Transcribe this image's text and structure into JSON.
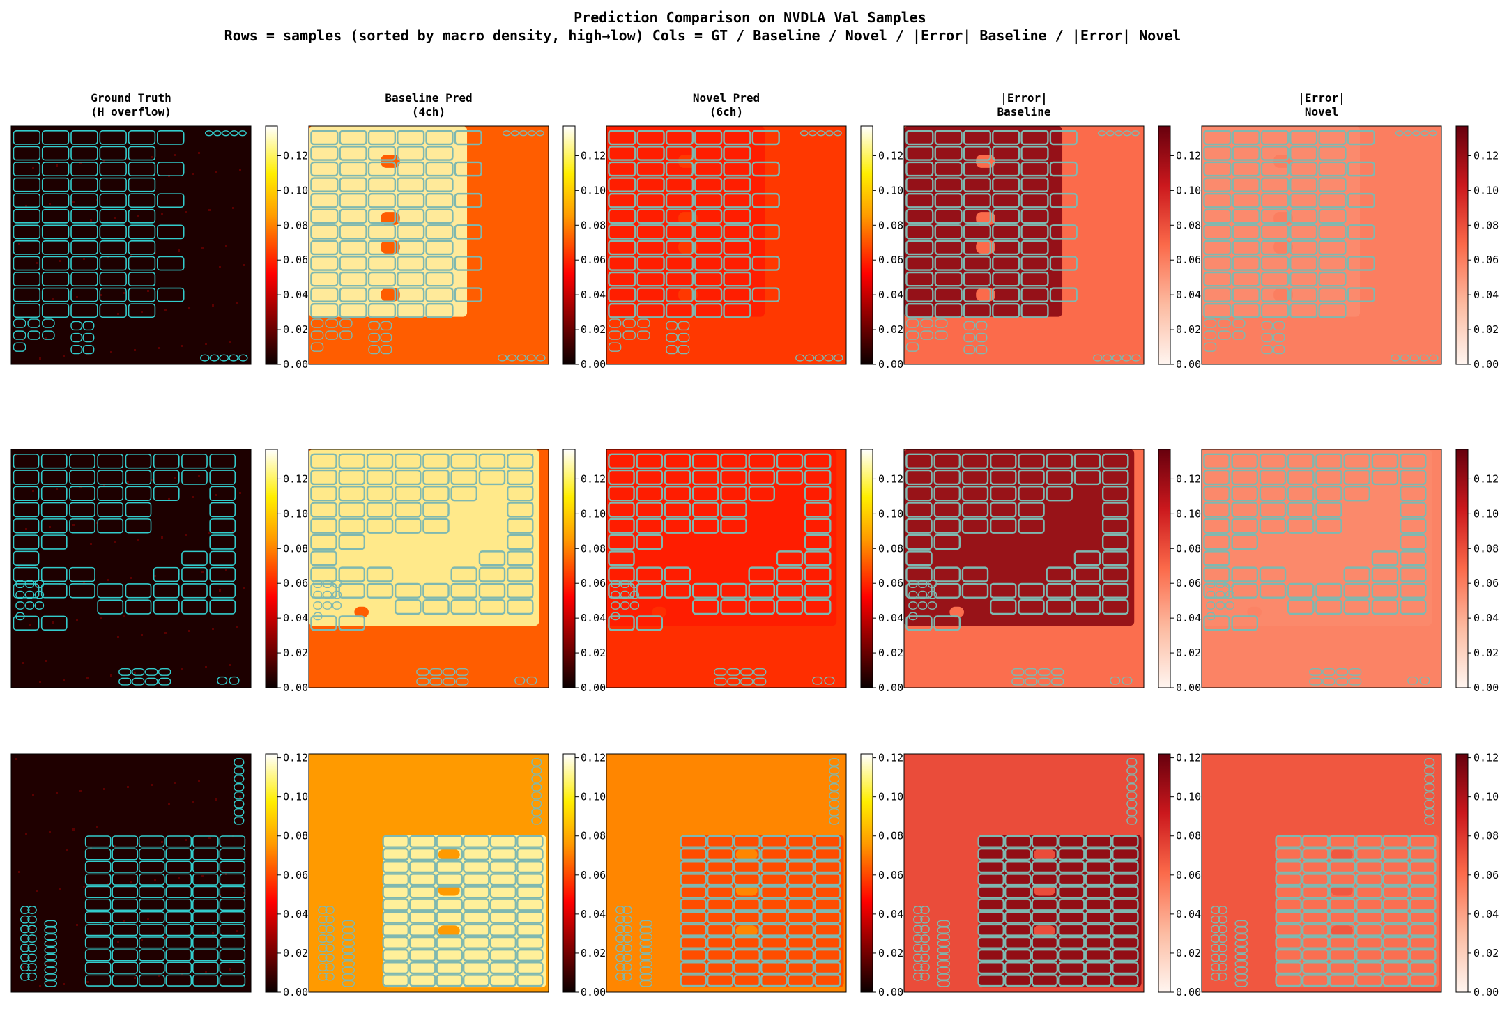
{
  "figure": {
    "title_line1": "Prediction Comparison on NVDLA Val Samples",
    "title_line2": "Rows = samples (sorted by macro density, high→low)  Cols = GT / Baseline / Novel / |Error| Baseline / |Error| Novel"
  },
  "colors": {
    "outline": "#33cccc",
    "outline_muted": "#7fb8b0"
  },
  "chart_data": {
    "type": "heatmap",
    "columns": [
      {
        "key": "gt",
        "title": [
          "Ground Truth",
          "(H overflow)"
        ],
        "colormap": "hot"
      },
      {
        "key": "baseline",
        "title": [
          "Baseline Pred",
          "(4ch)"
        ],
        "colormap": "hot"
      },
      {
        "key": "novel",
        "title": [
          "Novel Pred",
          "(6ch)"
        ],
        "colormap": "hot"
      },
      {
        "key": "err_baseline",
        "title": [
          "|Error|",
          "Baseline"
        ],
        "colormap": "reds"
      },
      {
        "key": "err_novel",
        "title": [
          "|Error|",
          "Novel"
        ],
        "colormap": "reds"
      }
    ],
    "rows": [
      {
        "sample": 1,
        "colorbar_range": [
          0,
          0.137
        ],
        "colorbar_ticks": [
          "0.00",
          "0.02",
          "0.04",
          "0.06",
          "0.08",
          "0.10",
          "0.12"
        ],
        "tick_values": [
          0,
          0.02,
          0.04,
          0.06,
          0.08,
          0.1,
          0.12
        ],
        "values": {
          "gt_background": 0.004,
          "baseline_macro": 0.128,
          "baseline_background": 0.072,
          "novel_macro": 0.058,
          "novel_background": 0.064,
          "err_baseline_macro": 0.125,
          "err_baseline_background": 0.068,
          "err_novel_macro": 0.054,
          "err_novel_background": 0.06
        }
      },
      {
        "sample": 2,
        "colorbar_range": [
          0,
          0.137
        ],
        "colorbar_ticks": [
          "0.00",
          "0.02",
          "0.04",
          "0.06",
          "0.08",
          "0.10",
          "0.12"
        ],
        "tick_values": [
          0,
          0.02,
          0.04,
          0.06,
          0.08,
          0.1,
          0.12
        ],
        "values": {
          "gt_background": 0.004,
          "baseline_macro": 0.126,
          "baseline_background": 0.072,
          "novel_macro": 0.058,
          "novel_background": 0.062,
          "err_baseline_macro": 0.124,
          "err_baseline_background": 0.067,
          "err_novel_macro": 0.055,
          "err_novel_background": 0.058
        }
      },
      {
        "sample": 3,
        "colorbar_range": [
          0,
          0.122
        ],
        "colorbar_ticks": [
          "0.00",
          "0.02",
          "0.04",
          "0.06",
          "0.08",
          "0.10",
          "0.12"
        ],
        "tick_values": [
          0,
          0.02,
          0.04,
          0.06,
          0.08,
          0.1,
          0.12
        ],
        "values": {
          "gt_background": 0.004,
          "baseline_macro": 0.114,
          "baseline_background": 0.076,
          "novel_macro": 0.06,
          "novel_background": 0.072,
          "err_baseline_macro": 0.112,
          "err_baseline_background": 0.072,
          "err_novel_macro": 0.058,
          "err_novel_background": 0.068
        }
      }
    ]
  }
}
